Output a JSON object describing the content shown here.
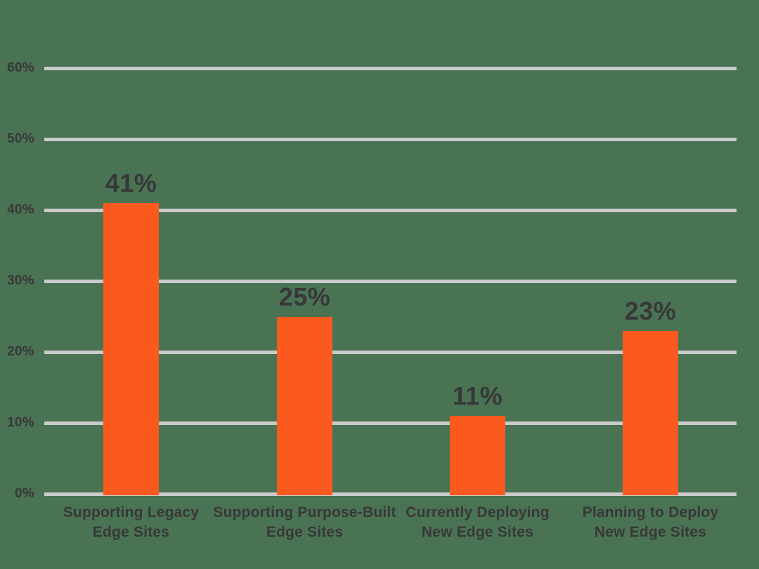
{
  "colors": {
    "background": "#4A7354",
    "bar": "#FA5A1E",
    "gridline": "#CACBCA",
    "text": "#383838"
  },
  "chart_data": {
    "type": "bar",
    "title": "",
    "xlabel": "",
    "ylabel": "",
    "categories": [
      "Supporting Legacy\nEdge Sites",
      "Supporting Purpose-Built\nEdge Sites",
      "Currently Deploying\nNew Edge Sites",
      "Planning to Deploy\nNew Edge Sites"
    ],
    "values": [
      41,
      25,
      11,
      23
    ],
    "value_labels": [
      "41%",
      "25%",
      "11%",
      "23%"
    ],
    "ylim": [
      0,
      60
    ],
    "yticks": {
      "values": [
        0,
        10,
        20,
        30,
        40,
        50,
        60
      ],
      "labels": [
        "0%",
        "10%",
        "20%",
        "30%",
        "40%",
        "50%",
        "60%"
      ]
    },
    "grid": true,
    "legend": false,
    "bar_color": "#FA5A1E"
  }
}
